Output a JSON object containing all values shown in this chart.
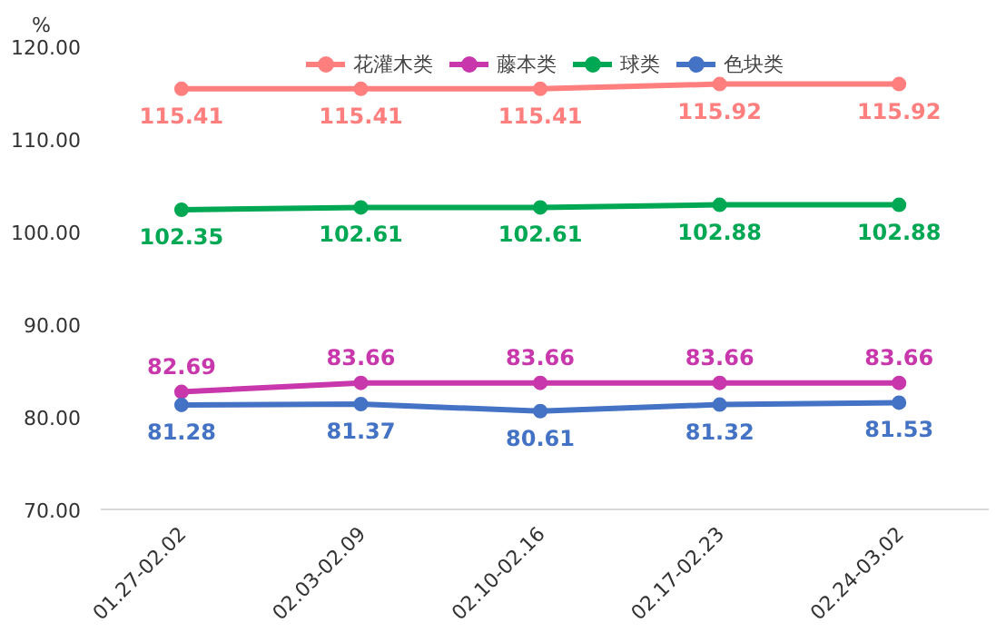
{
  "chart_data": {
    "type": "line",
    "ylabel": "%",
    "categories": [
      "01.27-02.02",
      "02.03-02.09",
      "02.10-02.16",
      "02.17-02.23",
      "02.24-03.02"
    ],
    "series": [
      {
        "name": "花灌木类",
        "color": "#ff7f7f",
        "values": [
          115.41,
          115.41,
          115.41,
          115.92,
          115.92
        ]
      },
      {
        "name": "藤本类",
        "color": "#c837ab",
        "values": [
          82.69,
          83.66,
          83.66,
          83.66,
          83.66
        ]
      },
      {
        "name": "球类",
        "color": "#00a854",
        "values": [
          102.35,
          102.61,
          102.61,
          102.88,
          102.88
        ]
      },
      {
        "name": "色块类",
        "color": "#4472c4",
        "values": [
          81.28,
          81.37,
          80.61,
          81.32,
          81.53
        ]
      }
    ],
    "ylim": [
      70,
      120
    ],
    "yticks": [
      {
        "value": 70,
        "label": "70.00"
      },
      {
        "value": 80,
        "label": "80.00"
      },
      {
        "value": 90,
        "label": "90.00"
      },
      {
        "value": 100,
        "label": "100.00"
      },
      {
        "value": 110,
        "label": "110.00"
      },
      {
        "value": 120,
        "label": "120.00"
      }
    ],
    "data_labels": true,
    "legend": "top",
    "marker": "circle",
    "grid": false,
    "line_style": "solid"
  }
}
